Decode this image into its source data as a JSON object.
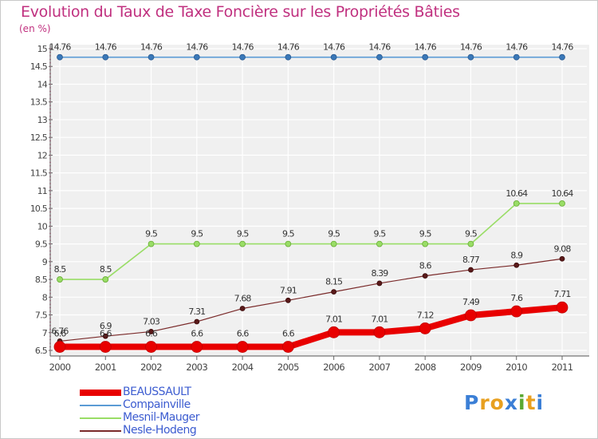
{
  "title": "Evolution du Taux de Taxe Foncière sur les Propriétés Bâties",
  "unit": "(en %)",
  "logo": {
    "text": "Proxiti",
    "letters": [
      "P",
      "r",
      "o",
      "x",
      "i",
      "t",
      "i"
    ],
    "colors": [
      "#3b7fd6",
      "#e8a020",
      "#e8a020",
      "#3b7fd6",
      "#5aa832",
      "#e8a020",
      "#3b7fd6"
    ]
  },
  "chart_data": {
    "type": "line",
    "title": "Evolution du Taux de Taxe Foncière sur les Propriétés Bâties",
    "ylabel": "(en %)",
    "xlabel": "",
    "ylim": [
      6.5,
      15
    ],
    "yticks": [
      "6.5",
      "7",
      "7.5",
      "8",
      "8.5",
      "9",
      "9.5",
      "10",
      "10.5",
      "11",
      "11.5",
      "12",
      "12.5",
      "13",
      "13.5",
      "14",
      "14.5",
      "15"
    ],
    "categories": [
      "2000",
      "2001",
      "2002",
      "2003",
      "2004",
      "2005",
      "2006",
      "2007",
      "2008",
      "2009",
      "2010",
      "2011"
    ],
    "grid": true,
    "legend_position": "bottom-left",
    "series": [
      {
        "name": "BEAUSSAULT",
        "color": "#e80000",
        "values": [
          6.6,
          6.6,
          6.6,
          6.6,
          6.6,
          6.6,
          7.01,
          7.01,
          7.12,
          7.49,
          7.6,
          7.71
        ],
        "labels": [
          "6.6",
          "6.6",
          "6.6",
          "6.6",
          "6.6",
          "6.6",
          "7.01",
          "7.01",
          "7.12",
          "7.49",
          "7.6",
          "7.71"
        ]
      },
      {
        "name": "Compainville",
        "color": "#5b9bd5",
        "values": [
          14.76,
          14.76,
          14.76,
          14.76,
          14.76,
          14.76,
          14.76,
          14.76,
          14.76,
          14.76,
          14.76,
          14.76
        ],
        "labels": [
          "14.76",
          "14.76",
          "14.76",
          "14.76",
          "14.76",
          "14.76",
          "14.76",
          "14.76",
          "14.76",
          "14.76",
          "14.76",
          "14.76"
        ]
      },
      {
        "name": "Mesnil-Mauger",
        "color": "#99dd66",
        "values": [
          8.5,
          8.5,
          9.5,
          9.5,
          9.5,
          9.5,
          9.5,
          9.5,
          9.5,
          9.5,
          10.64,
          10.64
        ],
        "labels": [
          "8.5",
          "8.5",
          "9.5",
          "9.5",
          "9.5",
          "9.5",
          "9.5",
          "9.5",
          "9.5",
          "9.5",
          "10.64",
          "10.64"
        ]
      },
      {
        "name": "Nesle-Hodeng",
        "color": "#7a2a2a",
        "values": [
          6.76,
          6.9,
          7.03,
          7.31,
          7.68,
          7.91,
          8.15,
          8.39,
          8.6,
          8.77,
          8.9,
          9.08
        ],
        "labels": [
          "6.76",
          "6.9",
          "7.03",
          "7.31",
          "7.68",
          "7.91",
          "8.15",
          "8.39",
          "8.6",
          "8.77",
          "8.9",
          "9.08"
        ]
      }
    ]
  }
}
